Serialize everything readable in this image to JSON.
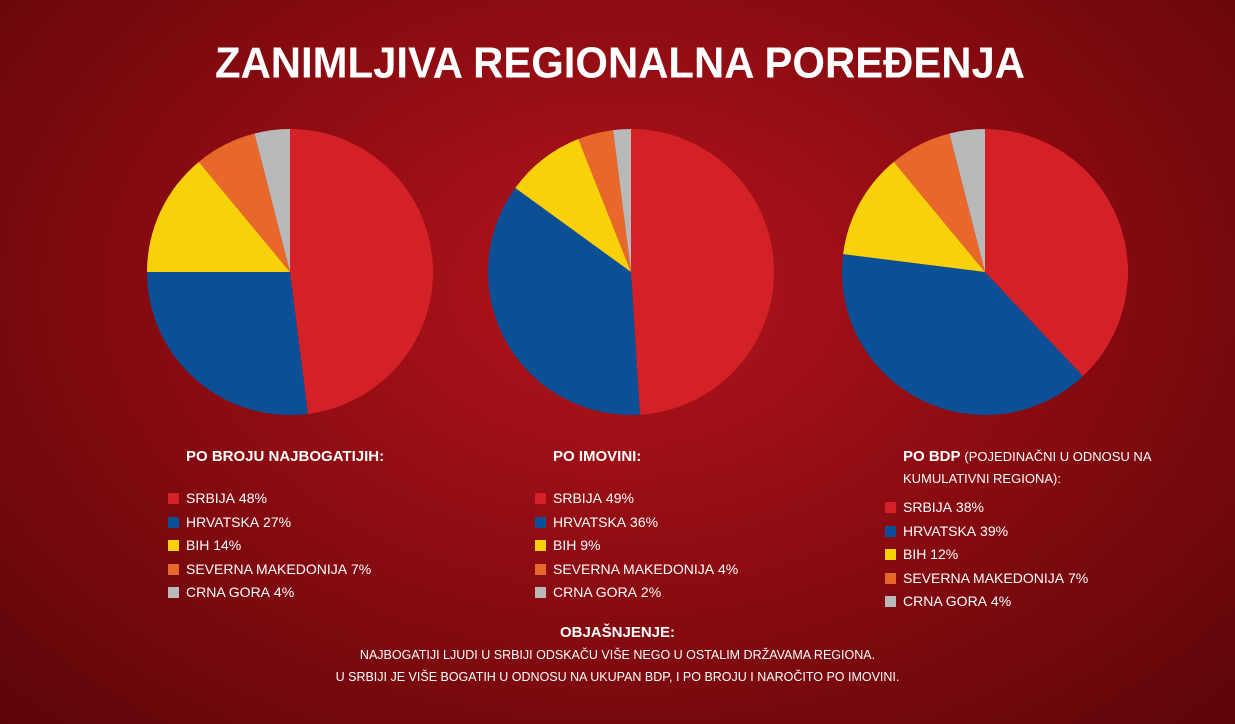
{
  "title": "ZANIMLJIVA REGIONALNA POREĐENJA",
  "chart_data": [
    {
      "type": "pie",
      "title": "PO BROJU NAJBOGATIJIH:",
      "categories": [
        "SRBIJA",
        "HRVATSKA",
        "BIH",
        "SEVERNA MAKEDONIJA",
        "CRNA GORA"
      ],
      "values": [
        48,
        27,
        14,
        7,
        4
      ],
      "value_labels": [
        "48%",
        "27%",
        "14%",
        "7%",
        "4%"
      ],
      "colors": [
        "#d42127",
        "#0b4f97",
        "#f9d10b",
        "#e8672a",
        "#b9b9b9"
      ]
    },
    {
      "type": "pie",
      "title": "PO IMOVINI:",
      "categories": [
        "SRBIJA",
        "HRVATSKA",
        "BIH",
        "SEVERNA MAKEDONIJA",
        "CRNA GORA"
      ],
      "values": [
        49,
        36,
        9,
        4,
        2
      ],
      "value_labels": [
        "49%",
        "36%",
        "9%",
        "4%",
        "2%"
      ],
      "colors": [
        "#d42127",
        "#0b4f97",
        "#f9d10b",
        "#e8672a",
        "#b9b9b9"
      ]
    },
    {
      "type": "pie",
      "title": "PO BDP",
      "subtitle": "(POJEDINAČNI U ODNOSU NA KUMULATIVNI REGIONA):",
      "categories": [
        "SRBIJA",
        "HRVATSKA",
        "BIH",
        "SEVERNA MAKEDONIJA",
        "CRNA GORA"
      ],
      "values": [
        38,
        39,
        12,
        7,
        4
      ],
      "value_labels": [
        "38%",
        "39%",
        "12%",
        "7%",
        "4%"
      ],
      "colors": [
        "#d42127",
        "#0b4f97",
        "#f9d10b",
        "#e8672a",
        "#b9b9b9"
      ]
    }
  ],
  "note": {
    "title": "OBJAŠNJENJE:",
    "lines": [
      "NAJBOGATIJI LJUDI U SRBIJI ODSKAČU VIŠE NEGO U OSTALIM DRŽAVAMA REGIONA.",
      "U SRBIJI JE VIŠE BOGATIH U ODNOSU NA UKUPAN BDP, I PO BROJU I NAROČITO PO IMOVINI."
    ]
  }
}
